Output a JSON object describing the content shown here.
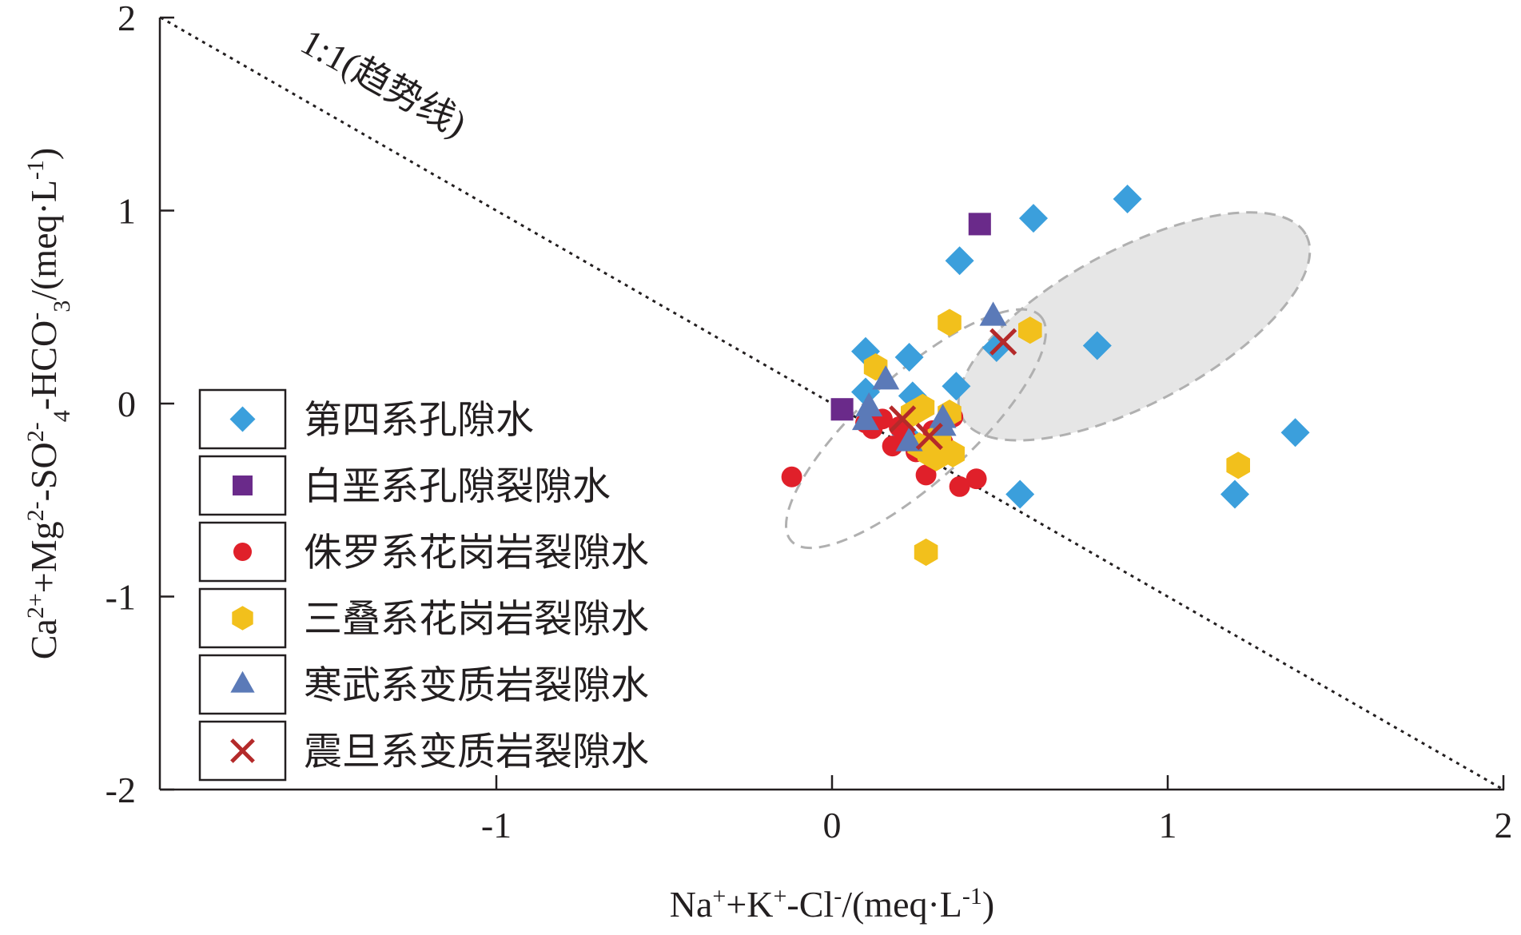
{
  "chart_data": {
    "type": "scatter",
    "title": "",
    "xlabel_html": "Na<sup>+</sup>+K<sup>+</sup>-Cl<sup>-</sup>/(meq·L<sup>-1</sup>)",
    "xlabel": "Na⁺+K⁺-Cl⁻/(meq·L⁻¹)",
    "ylabel": "Ca²⁺+Mg²⁻-SO₄²⁻-HCO₃⁻/(meq·L⁻¹)",
    "xlim": [
      -2,
      2
    ],
    "ylim": [
      -2,
      2
    ],
    "x_ticks": [
      -1,
      0,
      1,
      2
    ],
    "x_tick_labels": [
      "-1",
      "0",
      "1",
      "2"
    ],
    "y_ticks": [
      -2,
      -1,
      0,
      1,
      2
    ],
    "y_tick_labels": [
      "-2",
      "-1",
      "0",
      "1",
      "2"
    ],
    "grid": false,
    "legend_position": "left",
    "trend_line": {
      "label": "1:1(趋势线)",
      "x": [
        -2,
        2
      ],
      "y": [
        2,
        -2
      ]
    },
    "ellipses": [
      {
        "cx": 0.9,
        "cy": 0.4,
        "rx": 0.58,
        "ry": 0.4,
        "angle_deg": -28,
        "fill": "#e6e6e6"
      },
      {
        "cx": 0.25,
        "cy": -0.13,
        "rx": 0.5,
        "ry": 0.28,
        "angle_deg": -42,
        "fill": "none"
      }
    ],
    "series": [
      {
        "name": "第四系孔隙水",
        "marker": "diamond",
        "color": "#3b9fdc",
        "points": [
          [
            0.1,
            0.27
          ],
          [
            0.23,
            0.24
          ],
          [
            0.1,
            0.06
          ],
          [
            0.24,
            0.04
          ],
          [
            0.37,
            0.09
          ],
          [
            0.22,
            -0.16
          ],
          [
            0.38,
            0.74
          ],
          [
            0.6,
            0.96
          ],
          [
            0.88,
            1.06
          ],
          [
            0.49,
            0.29
          ],
          [
            0.79,
            0.3
          ],
          [
            0.56,
            -0.47
          ],
          [
            1.2,
            -0.47
          ],
          [
            1.38,
            -0.15
          ]
        ]
      },
      {
        "name": "白垩系孔隙裂隙水",
        "marker": "square",
        "color": "#6a2a8a",
        "points": [
          [
            0.03,
            -0.03
          ],
          [
            0.44,
            0.93
          ]
        ]
      },
      {
        "name": "侏罗系花岗岩裂隙水",
        "marker": "circle",
        "color": "#e0202a",
        "points": [
          [
            -0.12,
            -0.38
          ],
          [
            0.1,
            -0.1
          ],
          [
            0.12,
            -0.13
          ],
          [
            0.15,
            -0.08
          ],
          [
            0.18,
            -0.22
          ],
          [
            0.2,
            -0.12
          ],
          [
            0.22,
            -0.18
          ],
          [
            0.25,
            -0.25
          ],
          [
            0.28,
            -0.37
          ],
          [
            0.33,
            -0.2
          ],
          [
            0.36,
            -0.07
          ],
          [
            0.38,
            -0.43
          ],
          [
            0.43,
            -0.39
          ],
          [
            0.3,
            -0.14
          ]
        ]
      },
      {
        "name": "三叠系花岗岩裂隙水",
        "marker": "hexagon",
        "color": "#f2c01c",
        "points": [
          [
            0.13,
            0.19
          ],
          [
            0.24,
            -0.05
          ],
          [
            0.27,
            -0.02
          ],
          [
            0.26,
            -0.22
          ],
          [
            0.29,
            -0.26
          ],
          [
            0.31,
            -0.28
          ],
          [
            0.32,
            -0.17
          ],
          [
            0.36,
            -0.26
          ],
          [
            0.35,
            -0.05
          ],
          [
            0.35,
            0.42
          ],
          [
            0.59,
            0.38
          ],
          [
            1.21,
            -0.32
          ],
          [
            0.28,
            -0.77
          ]
        ]
      },
      {
        "name": "寒武系变质岩裂隙水",
        "marker": "triangle",
        "color": "#5b7ab8",
        "points": [
          [
            0.16,
            0.12
          ],
          [
            0.11,
            -0.02
          ],
          [
            0.1,
            -0.09
          ],
          [
            0.23,
            -0.2
          ],
          [
            0.33,
            -0.08
          ],
          [
            0.33,
            -0.12
          ],
          [
            0.48,
            0.45
          ]
        ]
      },
      {
        "name": "震旦系变质岩裂隙水",
        "marker": "x",
        "color": "#b42a2a",
        "points": [
          [
            0.21,
            -0.08
          ],
          [
            0.29,
            -0.17
          ],
          [
            0.51,
            0.32
          ]
        ]
      }
    ]
  }
}
